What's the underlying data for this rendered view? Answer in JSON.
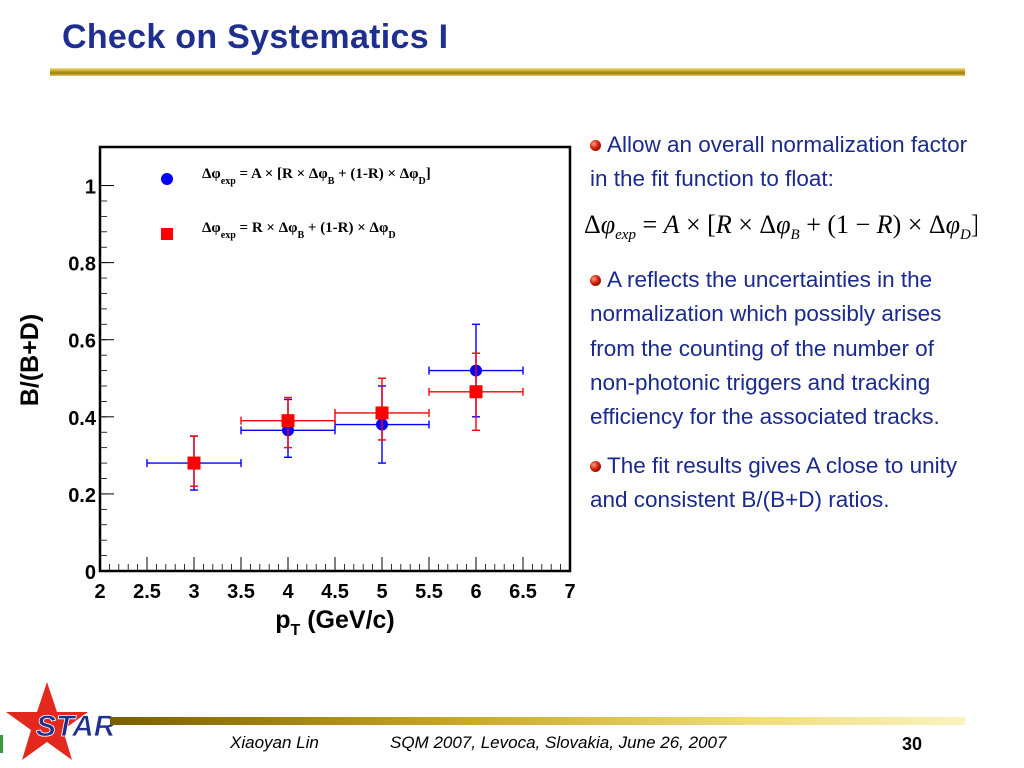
{
  "slide": {
    "title": "Check on Systematics I",
    "number": "30"
  },
  "footer": {
    "author": "Xiaoyan Lin",
    "event": "SQM 2007, Levoca, Slovakia, June 26, 2007"
  },
  "logo": {
    "text": "STAR",
    "star_color": "#e3281e",
    "text_color": "#1f2f8f"
  },
  "colors": {
    "title": "#1f2f8f",
    "body_text": "#1a2a8c",
    "series_blue": "#0000ff",
    "series_red": "#ff0000"
  },
  "bullets": [
    {
      "text": "Allow an overall normalization factor in the fit function to float:"
    },
    {
      "text": "A reflects the uncertainties in the normalization which possibly arises from the counting of the number of non-photonic triggers and tracking efficiency for the associated tracks."
    },
    {
      "text": "The fit results gives A close to unity and consistent B/(B+D) ratios."
    }
  ],
  "formula": {
    "lhs": "Δφ",
    "lhs_sub": "exp",
    "rhs": "= A × [R × Δφ_B + (1 − R) × Δφ_D]"
  },
  "chart_data": {
    "type": "scatter",
    "xlabel": "p_T (GeV/c)",
    "ylabel": "B/(B+D)",
    "xlim": [
      2,
      7
    ],
    "ylim": [
      0,
      1.1
    ],
    "xticks": [
      "2",
      "2.5",
      "3",
      "3.5",
      "4",
      "4.5",
      "5",
      "5.5",
      "6",
      "6.5",
      "7"
    ],
    "yticks": [
      "0",
      "0.2",
      "0.4",
      "0.6",
      "0.8",
      "1"
    ],
    "grid": false,
    "legend_position": "top-left",
    "series": [
      {
        "name": "Δφ_exp = A × [R × Δφ_B + (1-R) × Δφ_D]",
        "marker": "circle",
        "color": "#0000ff",
        "points": [
          {
            "x": 3,
            "y": 0.28,
            "xerr": 0.5,
            "yerr_up": 0.07,
            "yerr_down": 0.07
          },
          {
            "x": 4,
            "y": 0.365,
            "xerr": 0.5,
            "yerr_up": 0.08,
            "yerr_down": 0.07
          },
          {
            "x": 5,
            "y": 0.38,
            "xerr": 0.5,
            "yerr_up": 0.1,
            "yerr_down": 0.1
          },
          {
            "x": 6,
            "y": 0.52,
            "xerr": 0.5,
            "yerr_up": 0.12,
            "yerr_down": 0.12
          }
        ]
      },
      {
        "name": "Δφ_exp = R × Δφ_B + (1-R) × Δφ_D",
        "marker": "square",
        "color": "#ff0000",
        "points": [
          {
            "x": 3,
            "y": 0.28,
            "xerr": 0,
            "yerr_up": 0.07,
            "yerr_down": 0.06
          },
          {
            "x": 4,
            "y": 0.39,
            "xerr": 0.5,
            "yerr_up": 0.06,
            "yerr_down": 0.07
          },
          {
            "x": 5,
            "y": 0.41,
            "xerr": 0.5,
            "yerr_up": 0.09,
            "yerr_down": 0.07
          },
          {
            "x": 6,
            "y": 0.465,
            "xerr": 0.5,
            "yerr_up": 0.1,
            "yerr_down": 0.1
          }
        ]
      }
    ]
  }
}
